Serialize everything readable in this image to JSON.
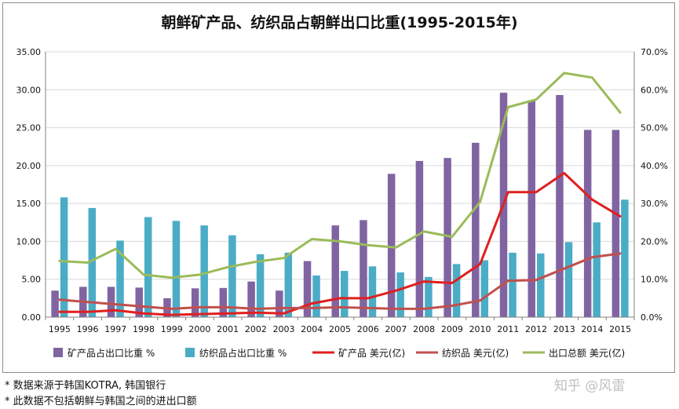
{
  "title": "朝鲜矿产品、纺织品占朝鲜出口比重(1995-2015年)",
  "notes": [
    "* 数据来源于韩国KOTRA, 韩国银行",
    "* 此数据不包括朝鲜与韩国之间的进出口额"
  ],
  "watermark": "知乎 @风雷",
  "colors": {
    "mineral_share": "#8064a2",
    "textile_share": "#4bacc6",
    "mineral_usd": "#e01f1f",
    "textile_usd": "#c0504d",
    "export_total": "#9bbb59",
    "grid": "#d9d9d9",
    "axis": "#808080"
  },
  "chart_data": {
    "type": "bar",
    "categories": [
      "1995",
      "1996",
      "1997",
      "1998",
      "1999",
      "2000",
      "2001",
      "2002",
      "2003",
      "2004",
      "2005",
      "2006",
      "2007",
      "2008",
      "2009",
      "2010",
      "2011",
      "2012",
      "2013",
      "2014",
      "2015"
    ],
    "left_axis": {
      "ylim": [
        0,
        35
      ],
      "ticks": [
        "0.00",
        "5.00",
        "10.00",
        "15.00",
        "20.00",
        "25.00",
        "30.00",
        "35.00"
      ]
    },
    "right_axis": {
      "ylim": [
        0,
        0.7
      ],
      "ticks": [
        "0.0%",
        "10.0%",
        "20.0%",
        "30.0%",
        "40.0%",
        "50.0%",
        "60.0%",
        "70.0%"
      ]
    },
    "bar_series": [
      {
        "name": "矿产品占出口比重 %",
        "axis": "right",
        "values": [
          0.07,
          0.08,
          0.08,
          0.078,
          0.05,
          0.076,
          0.077,
          0.094,
          0.07,
          0.148,
          0.242,
          0.256,
          0.378,
          0.412,
          0.42,
          0.46,
          0.592,
          0.572,
          0.586,
          0.494,
          0.494
        ]
      },
      {
        "name": "纺织品占出口比重 %",
        "axis": "right",
        "values": [
          0.316,
          0.288,
          0.202,
          0.264,
          0.254,
          0.242,
          0.216,
          0.166,
          0.17,
          0.11,
          0.122,
          0.134,
          0.118,
          0.106,
          0.14,
          0.15,
          0.17,
          0.168,
          0.198,
          0.25,
          0.31
        ]
      }
    ],
    "line_series": [
      {
        "name": "矿产品 美元(亿)",
        "axis": "left",
        "values": [
          0.7,
          0.7,
          0.9,
          0.5,
          0.3,
          0.4,
          0.5,
          0.6,
          0.5,
          1.8,
          2.5,
          2.5,
          3.5,
          4.7,
          4.5,
          7.0,
          16.5,
          16.5,
          19.0,
          15.5,
          13.3
        ]
      },
      {
        "name": "纺织品 美元(亿)",
        "axis": "left",
        "values": [
          2.3,
          2.0,
          1.7,
          1.4,
          1.1,
          1.3,
          1.3,
          1.1,
          1.2,
          1.2,
          1.3,
          1.2,
          1.1,
          1.1,
          1.5,
          2.2,
          4.8,
          4.9,
          6.4,
          7.9,
          8.4
        ]
      },
      {
        "name": "出口总额 美元(亿)",
        "axis": "left",
        "values": [
          7.4,
          7.2,
          9.0,
          5.6,
          5.2,
          5.6,
          6.6,
          7.3,
          7.8,
          10.3,
          10.0,
          9.5,
          9.2,
          11.3,
          10.6,
          15.2,
          27.7,
          28.7,
          32.2,
          31.6,
          27.0
        ]
      }
    ],
    "grid": true,
    "legend_position": "bottom"
  }
}
